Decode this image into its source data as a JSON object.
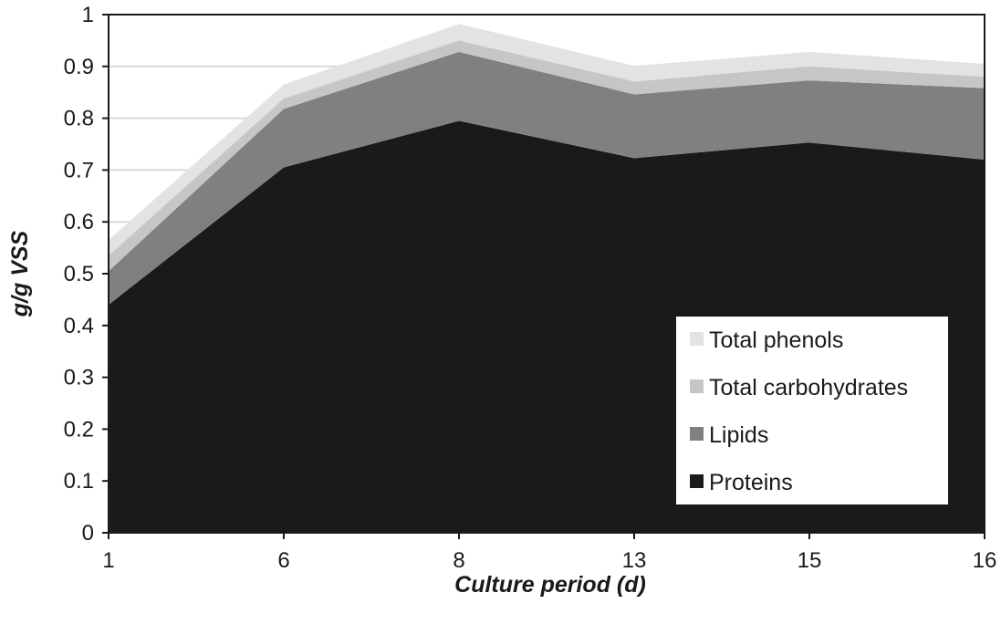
{
  "chart_data": {
    "type": "area",
    "stacked": true,
    "x": [
      1,
      6,
      8,
      13,
      15,
      16
    ],
    "x_tick_labels": [
      "1",
      "6",
      "8",
      "13",
      "15",
      "16"
    ],
    "xlabel": "Culture period (d)",
    "ylabel": "g/g VSS",
    "ylim": [
      0,
      1
    ],
    "y_ticks": [
      0,
      0.1,
      0.2,
      0.3,
      0.4,
      0.5,
      0.6,
      0.7,
      0.8,
      0.9,
      1
    ],
    "y_tick_labels": [
      "0",
      "0.1",
      "0.2",
      "0.3",
      "0.4",
      "0.5",
      "0.6",
      "0.7",
      "0.8",
      "0.9",
      "1"
    ],
    "grid": "horizontal",
    "legend_position": "bottom-right",
    "series": [
      {
        "name": "Proteins",
        "values": [
          0.44,
          0.705,
          0.795,
          0.723,
          0.753,
          0.72
        ],
        "color": "#1a1a1a"
      },
      {
        "name": "Lipids",
        "values": [
          0.065,
          0.113,
          0.133,
          0.123,
          0.12,
          0.138
        ],
        "color": "#808080"
      },
      {
        "name": "Total carbohydrates",
        "values": [
          0.03,
          0.02,
          0.022,
          0.025,
          0.027,
          0.022
        ],
        "color": "#c6c6c6"
      },
      {
        "name": "Total phenols",
        "values": [
          0.03,
          0.027,
          0.032,
          0.03,
          0.028,
          0.025
        ],
        "color": "#e3e3e3"
      }
    ],
    "legend_order": [
      "Total phenols",
      "Total carbohydrates",
      "Lipids",
      "Proteins"
    ]
  }
}
